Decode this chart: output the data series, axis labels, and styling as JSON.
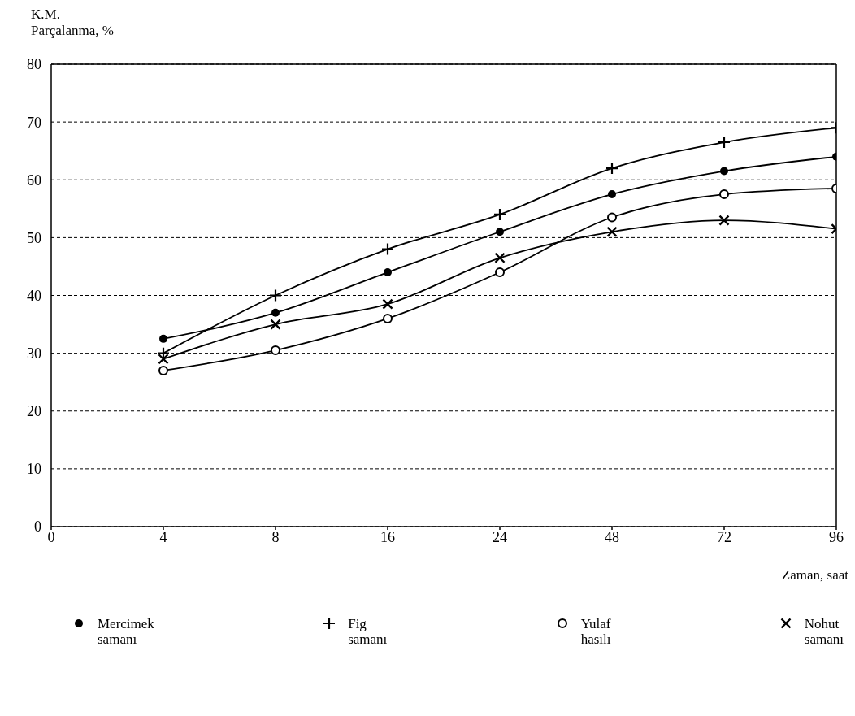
{
  "chart_data": {
    "type": "line",
    "ylabel": "K.M.\nParçalanma, %",
    "xlabel": "Zaman, saat",
    "categories": [
      "0",
      "4",
      "8",
      "16",
      "24",
      "48",
      "72",
      "96"
    ],
    "ylim": [
      0,
      80
    ],
    "yticks": [
      0,
      10,
      20,
      30,
      40,
      50,
      60,
      70,
      80
    ],
    "grid": "y",
    "legend": "bottom",
    "series": [
      {
        "name": "Mercimek\nsamanı",
        "color": "#000000",
        "marker": "circle",
        "values": [
          null,
          32.5,
          37,
          44,
          51,
          57.5,
          61.5,
          64
        ]
      },
      {
        "name": "Fig\nsamanı",
        "color": "#000000",
        "marker": "plus",
        "values": [
          null,
          30,
          40,
          48,
          54,
          62,
          66.5,
          69
        ]
      },
      {
        "name": "Yulaf\nhasılı",
        "color": "#000000",
        "marker": "circle-open",
        "values": [
          null,
          27,
          30.5,
          36,
          44,
          53.5,
          57.5,
          58.5
        ]
      },
      {
        "name": "Nohut\nsamanı",
        "color": "#000000",
        "marker": "cross",
        "values": [
          null,
          29,
          35,
          38.5,
          46.5,
          51,
          53,
          51.5
        ]
      }
    ]
  }
}
